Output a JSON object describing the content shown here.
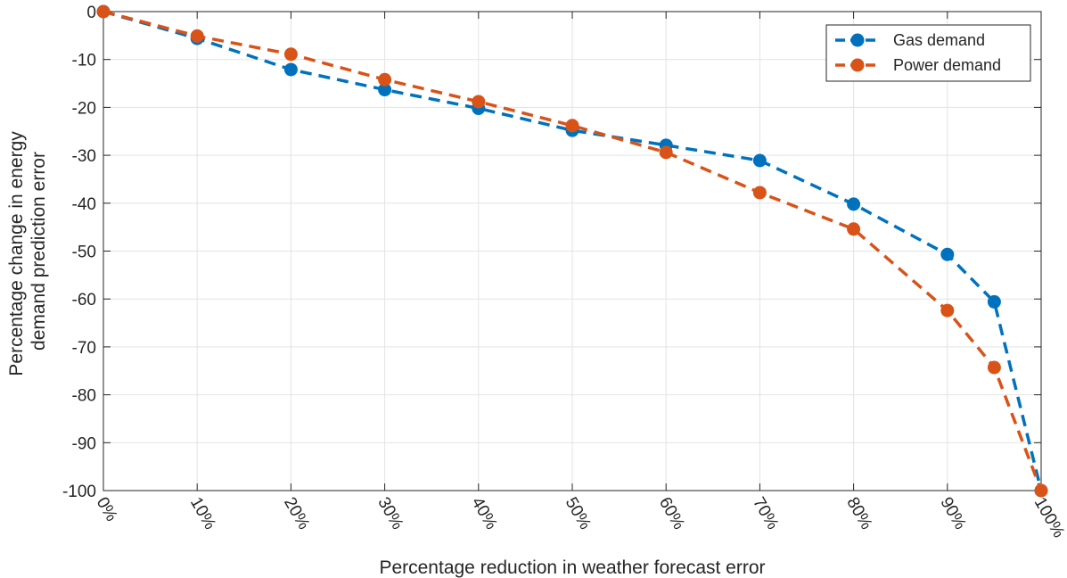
{
  "chart_data": {
    "type": "line",
    "title": "",
    "xlabel": "Percentage reduction in weather forecast error",
    "ylabel_lines": [
      "Percentage change in energy",
      "demand prediction error"
    ],
    "x": [
      0,
      10,
      20,
      30,
      40,
      50,
      60,
      70,
      80,
      90,
      95,
      100
    ],
    "xticks": [
      0,
      10,
      20,
      30,
      40,
      50,
      60,
      70,
      80,
      90,
      100
    ],
    "xtick_labels": [
      "0%",
      "10%",
      "20%",
      "30%",
      "40%",
      "50%",
      "60%",
      "70%",
      "80%",
      "90%",
      "100%"
    ],
    "xlim": [
      0,
      100
    ],
    "ylim": [
      -100,
      0
    ],
    "yticks": [
      0,
      -10,
      -20,
      -30,
      -40,
      -50,
      -60,
      -70,
      -80,
      -90,
      -100
    ],
    "ytick_labels": [
      "0",
      "-10",
      "-20",
      "-30",
      "-40",
      "-50",
      "-60",
      "-70",
      "-80",
      "-90",
      "-100"
    ],
    "grid": true,
    "legend_position": "top-right",
    "series": [
      {
        "name": "Gas demand",
        "color": "#0072BD",
        "values": [
          0,
          -5.6,
          -12.1,
          -16.3,
          -20.2,
          -24.8,
          -27.9,
          -31.1,
          -40.2,
          -50.7,
          -60.6,
          -100
        ]
      },
      {
        "name": "Power demand",
        "color": "#D95319",
        "values": [
          0,
          -5.1,
          -8.9,
          -14.2,
          -18.8,
          -23.8,
          -29.4,
          -37.8,
          -45.4,
          -62.4,
          -74.3,
          -100
        ]
      }
    ]
  }
}
